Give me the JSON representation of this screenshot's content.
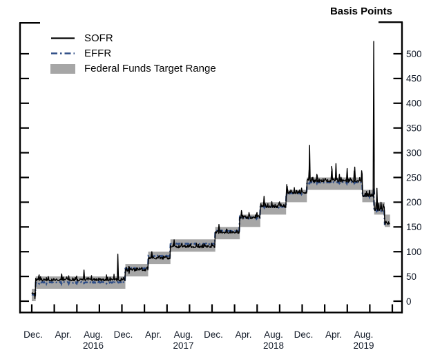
{
  "title": "Basis Points",
  "legend": {
    "sofr": "SOFR",
    "effr": "EFFR",
    "band": "Federal Funds Target Range"
  },
  "colors": {
    "sofr": "#000000",
    "effr": "#2e4d86",
    "band": "#a6a6a6",
    "frame": "#000000",
    "text": "#101826"
  },
  "chart_data": {
    "type": "line",
    "title": "Basis Points",
    "unit": "basis points",
    "legend_entries": [
      "SOFR",
      "EFFR",
      "Federal Funds Target Range"
    ],
    "y_axis": {
      "ticks": [
        0,
        50,
        100,
        150,
        200,
        250,
        300,
        350,
        400,
        450,
        500
      ],
      "range": [
        0,
        560
      ],
      "side": "right",
      "grid": false
    },
    "x_axis": {
      "start": "2015-12-01",
      "end": "2019-12-01",
      "tick_every_months": 3,
      "month_labels": [
        {
          "text": "Dec.",
          "m": 0
        },
        {
          "text": "Apr.",
          "m": 4
        },
        {
          "text": "Aug.",
          "m": 8
        },
        {
          "text": "Dec.",
          "m": 12
        },
        {
          "text": "Apr.",
          "m": 16
        },
        {
          "text": "Aug.",
          "m": 20
        },
        {
          "text": "Dec.",
          "m": 24
        },
        {
          "text": "Apr.",
          "m": 28
        },
        {
          "text": "Aug.",
          "m": 32
        },
        {
          "text": "Dec.",
          "m": 36
        },
        {
          "text": "Apr.",
          "m": 40
        },
        {
          "text": "Aug.",
          "m": 44
        }
      ],
      "year_labels": [
        {
          "text": "2016",
          "m": 8
        },
        {
          "text": "2017",
          "m": 20
        },
        {
          "text": "2018",
          "m": 32
        },
        {
          "text": "2019",
          "m": 44
        }
      ]
    },
    "data_end": "2019-11-22",
    "target_range_steps": [
      {
        "from": "2015-12-01",
        "to": "2015-12-17",
        "low": 0,
        "high": 25,
        "effr": 13,
        "sofr": 15,
        "j_sofr": 1.5,
        "j_effr": 0.8,
        "me": 0
      },
      {
        "from": "2015-12-17",
        "to": "2016-12-15",
        "low": 25,
        "high": 50,
        "effr": 38,
        "sofr": 43,
        "j_sofr": 4.0,
        "j_effr": 1.6,
        "me": 5
      },
      {
        "from": "2016-12-15",
        "to": "2017-03-16",
        "low": 50,
        "high": 75,
        "effr": 66,
        "sofr": 63,
        "j_sofr": 4.0,
        "j_effr": 2.0,
        "me": 5
      },
      {
        "from": "2017-03-16",
        "to": "2017-06-15",
        "low": 75,
        "high": 100,
        "effr": 91,
        "sofr": 87,
        "j_sofr": 3.5,
        "j_effr": 1.5,
        "me": 5
      },
      {
        "from": "2017-06-15",
        "to": "2017-12-14",
        "low": 100,
        "high": 125,
        "effr": 116,
        "sofr": 110,
        "j_sofr": 4.0,
        "j_effr": 1.5,
        "me": 5
      },
      {
        "from": "2017-12-14",
        "to": "2018-03-22",
        "low": 125,
        "high": 150,
        "effr": 142,
        "sofr": 139,
        "j_sofr": 3.5,
        "j_effr": 1.5,
        "me": 6
      },
      {
        "from": "2018-03-22",
        "to": "2018-06-14",
        "low": 150,
        "high": 175,
        "effr": 169,
        "sofr": 168,
        "j_sofr": 4.0,
        "j_effr": 1.5,
        "me": 7
      },
      {
        "from": "2018-06-14",
        "to": "2018-09-27",
        "low": 175,
        "high": 200,
        "effr": 191,
        "sofr": 191,
        "j_sofr": 3.5,
        "j_effr": 1.2,
        "me": 8
      },
      {
        "from": "2018-09-27",
        "to": "2018-12-20",
        "low": 200,
        "high": 225,
        "effr": 218,
        "sofr": 219,
        "j_sofr": 4.0,
        "j_effr": 1.2,
        "me": 9
      },
      {
        "from": "2018-12-20",
        "to": "2019-08-01",
        "low": 225,
        "high": 250,
        "effr": 240,
        "sofr": 243,
        "j_sofr": 4.5,
        "j_effr": 1.2,
        "me": 13
      },
      {
        "from": "2019-08-01",
        "to": "2019-09-19",
        "low": 200,
        "high": 225,
        "effr": 213,
        "sofr": 214,
        "j_sofr": 5.0,
        "j_effr": 1.5,
        "me": 8
      },
      {
        "from": "2019-09-19",
        "to": "2019-10-31",
        "low": 175,
        "high": 200,
        "effr": 183,
        "sofr": 186,
        "j_sofr": 7.0,
        "j_effr": 2.5,
        "me": 8
      },
      {
        "from": "2019-10-31",
        "to": "2019-11-22",
        "low": 150,
        "high": 175,
        "effr": 156,
        "sofr": 157,
        "j_sofr": 3.5,
        "j_effr": 1.5,
        "me": 4
      }
    ],
    "sofr_spikes": [
      {
        "date": "2015-12-14",
        "value": 5
      },
      {
        "date": "2016-03-31",
        "value": 55
      },
      {
        "date": "2016-06-30",
        "value": 63
      },
      {
        "date": "2016-11-15",
        "value": 95
      },
      {
        "date": "2016-12-30",
        "value": 56
      },
      {
        "date": "2017-03-31",
        "value": 100
      },
      {
        "date": "2017-06-30",
        "value": 124
      },
      {
        "date": "2017-12-29",
        "value": 155
      },
      {
        "date": "2018-03-29",
        "value": 183
      },
      {
        "date": "2018-06-29",
        "value": 212
      },
      {
        "date": "2018-10-01",
        "value": 232
      },
      {
        "date": "2018-12-31",
        "value": 315
      },
      {
        "date": "2019-01-31",
        "value": 255
      },
      {
        "date": "2019-03-29",
        "value": 263
      },
      {
        "date": "2019-04-16",
        "value": 278
      },
      {
        "date": "2019-05-31",
        "value": 268
      },
      {
        "date": "2019-07-01",
        "value": 271
      },
      {
        "date": "2019-09-17",
        "value": 525
      },
      {
        "date": "2019-09-30",
        "value": 228
      },
      {
        "date": "2019-10-16",
        "value": 200
      }
    ],
    "effr_spikes": [
      {
        "date": "2019-09-17",
        "value": 230
      }
    ]
  }
}
